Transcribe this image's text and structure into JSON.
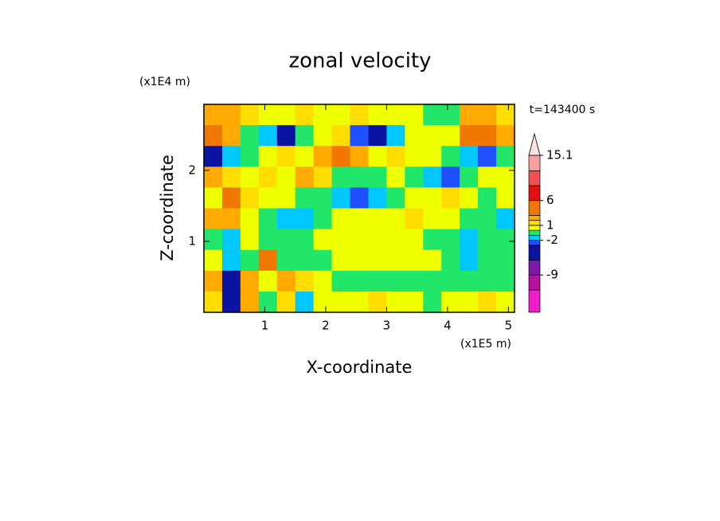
{
  "chart_data": {
    "type": "contour",
    "title": "zonal velocity",
    "xlabel": "X-coordinate",
    "ylabel": "Z-coordinate",
    "x_multiplier": "(x1E5 m)",
    "y_multiplier": "(x1E4 m)",
    "time_label": "t=143400 s",
    "xlim": [
      0,
      5.1
    ],
    "ylim": [
      0,
      2.93
    ],
    "xticks": [
      1,
      2,
      3,
      4,
      5
    ],
    "yticks": [
      1,
      2
    ],
    "levels": [
      -16.5,
      -12,
      -9,
      -6,
      -3,
      -2,
      -1,
      0,
      1,
      2,
      3,
      6,
      9,
      12,
      15.1
    ],
    "colors": [
      "#ee1ecc",
      "#b4129f",
      "#7a1aa8",
      "#0a14a0",
      "#1e50ff",
      "#00c8ff",
      "#22e66a",
      "#eeff00",
      "#ffdd00",
      "#ffaa00",
      "#f07800",
      "#e01010",
      "#f05050",
      "#f8a0a0",
      "#ffe0e0"
    ],
    "cticks": [
      -9,
      -2,
      1,
      6,
      15.1
    ],
    "z": [
      [
        2,
        2,
        1,
        0.5,
        0.5,
        1,
        0.5,
        0.5,
        1,
        0.5,
        0.5,
        0,
        -0.5,
        -1,
        2,
        2,
        1
      ],
      [
        3,
        2,
        -1,
        -2,
        -4,
        -1,
        0.5,
        1,
        -3,
        -4,
        -2,
        0.5,
        0.5,
        0,
        3,
        3,
        2
      ],
      [
        -5,
        -2,
        -0.5,
        0.5,
        1,
        0.5,
        2,
        3,
        2,
        0.5,
        1,
        0.5,
        0,
        -1,
        -2,
        -2.5,
        -1
      ],
      [
        2,
        1,
        0.5,
        1,
        0.5,
        2,
        1,
        -0.5,
        -0.5,
        -0.5,
        0,
        -1,
        -2,
        -2.5,
        -1,
        0.5,
        0.5
      ],
      [
        0.5,
        3,
        1,
        0.5,
        0.5,
        -0.5,
        -1,
        -2,
        -2.5,
        -2,
        -0.5,
        0.5,
        0.5,
        1,
        0.5,
        -0.5,
        0
      ],
      [
        2,
        2,
        0.5,
        -0.5,
        -2,
        -1.5,
        -0.5,
        0.5,
        0.5,
        0.5,
        0.5,
        1,
        0.5,
        0.5,
        -0.5,
        -1,
        -2
      ],
      [
        -0.5,
        -2,
        0.5,
        -1,
        -0.5,
        -0.5,
        0.5,
        0.5,
        0.5,
        0.5,
        0.5,
        0.5,
        -0.5,
        -1,
        -2,
        -1,
        -0.5
      ],
      [
        0.5,
        -2,
        -0.5,
        3,
        -0.5,
        -1,
        -0.5,
        0.5,
        0.5,
        0.5,
        0.5,
        0.5,
        0.5,
        -0.5,
        -2,
        -1,
        -0.5
      ],
      [
        2,
        -5,
        2,
        0.5,
        2,
        1,
        0.5,
        -0.5,
        -0.5,
        -0.5,
        -0.5,
        -0.5,
        -0.5,
        -0.5,
        -0.5,
        -0.5,
        -0.5
      ],
      [
        1,
        -4,
        2,
        -1,
        1,
        -2,
        0.5,
        0.5,
        0.5,
        1,
        0.5,
        0.5,
        -0.5,
        0.5,
        0.5,
        1,
        0.5
      ]
    ]
  }
}
